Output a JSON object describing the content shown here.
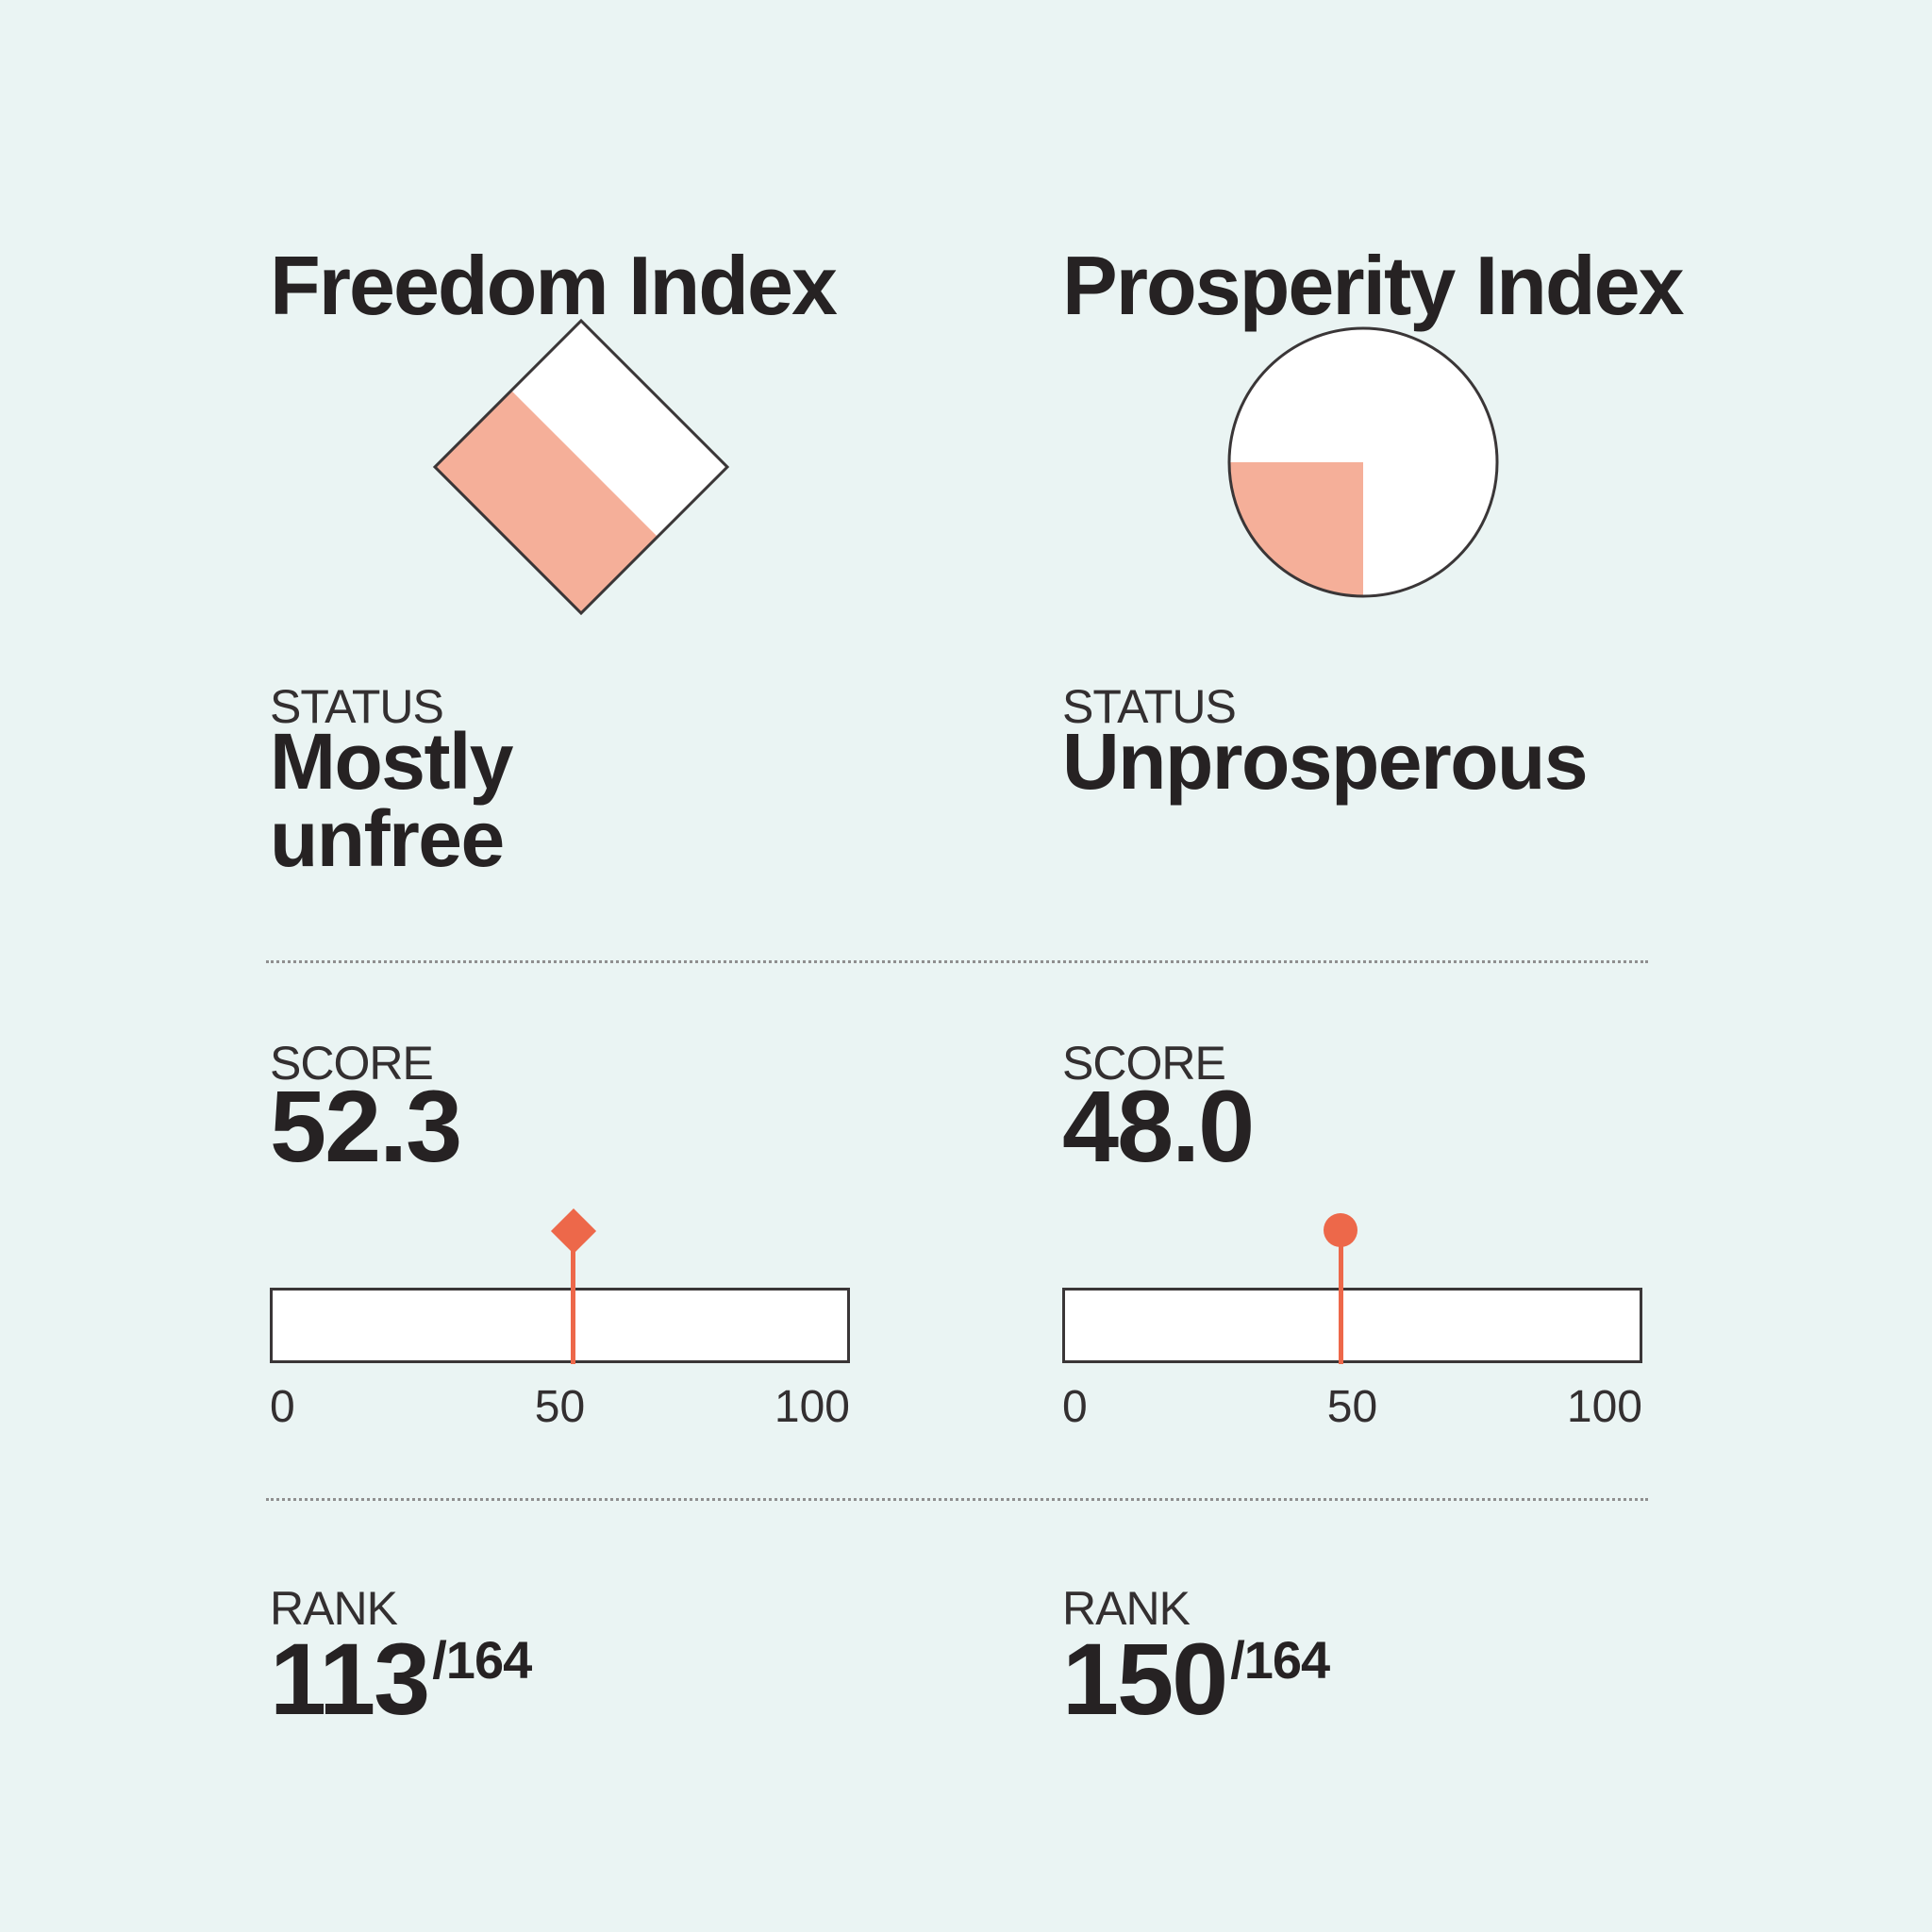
{
  "colors": {
    "background": "#eaf4f3",
    "accent_fill": "#f5af99",
    "accent_marker": "#ed684a",
    "text_dark": "#262223",
    "outline": "#3a3637",
    "divider_dots": "#8f8f8f",
    "bar_background": "#ffffff"
  },
  "panels": [
    {
      "title": "Freedom Index",
      "icon": "diamond-square-icon",
      "status_label": "STATUS",
      "status_value": "Mostly unfree",
      "score_label": "SCORE",
      "score_value": "52.3",
      "rank_label": "RANK",
      "rank_value": "113",
      "rank_total": "/164",
      "ticks": {
        "min": "0",
        "mid": "50",
        "max": "100"
      }
    },
    {
      "title": "Prosperity Index",
      "icon": "pie-circle-icon",
      "status_label": "STATUS",
      "status_value": "Unprosperous",
      "score_label": "SCORE",
      "score_value": "48.0",
      "rank_label": "RANK",
      "rank_value": "150",
      "rank_total": "/164",
      "ticks": {
        "min": "0",
        "mid": "50",
        "max": "100"
      }
    }
  ],
  "chart_data": [
    {
      "type": "gauge",
      "title": "Freedom Index",
      "status": "Mostly unfree",
      "score": 52.3,
      "range": [
        0,
        100
      ],
      "tick_values": [
        0,
        50,
        100
      ],
      "rank": 113,
      "rank_out_of": 164,
      "marker": "diamond",
      "icon_shape": "rotated-square",
      "icon_fill_fraction": 0.523
    },
    {
      "type": "gauge",
      "title": "Prosperity Index",
      "status": "Unprosperous",
      "score": 48.0,
      "range": [
        0,
        100
      ],
      "tick_values": [
        0,
        50,
        100
      ],
      "rank": 150,
      "rank_out_of": 164,
      "marker": "circle",
      "icon_shape": "pie-circle",
      "icon_fill_fraction": 0.25
    }
  ]
}
